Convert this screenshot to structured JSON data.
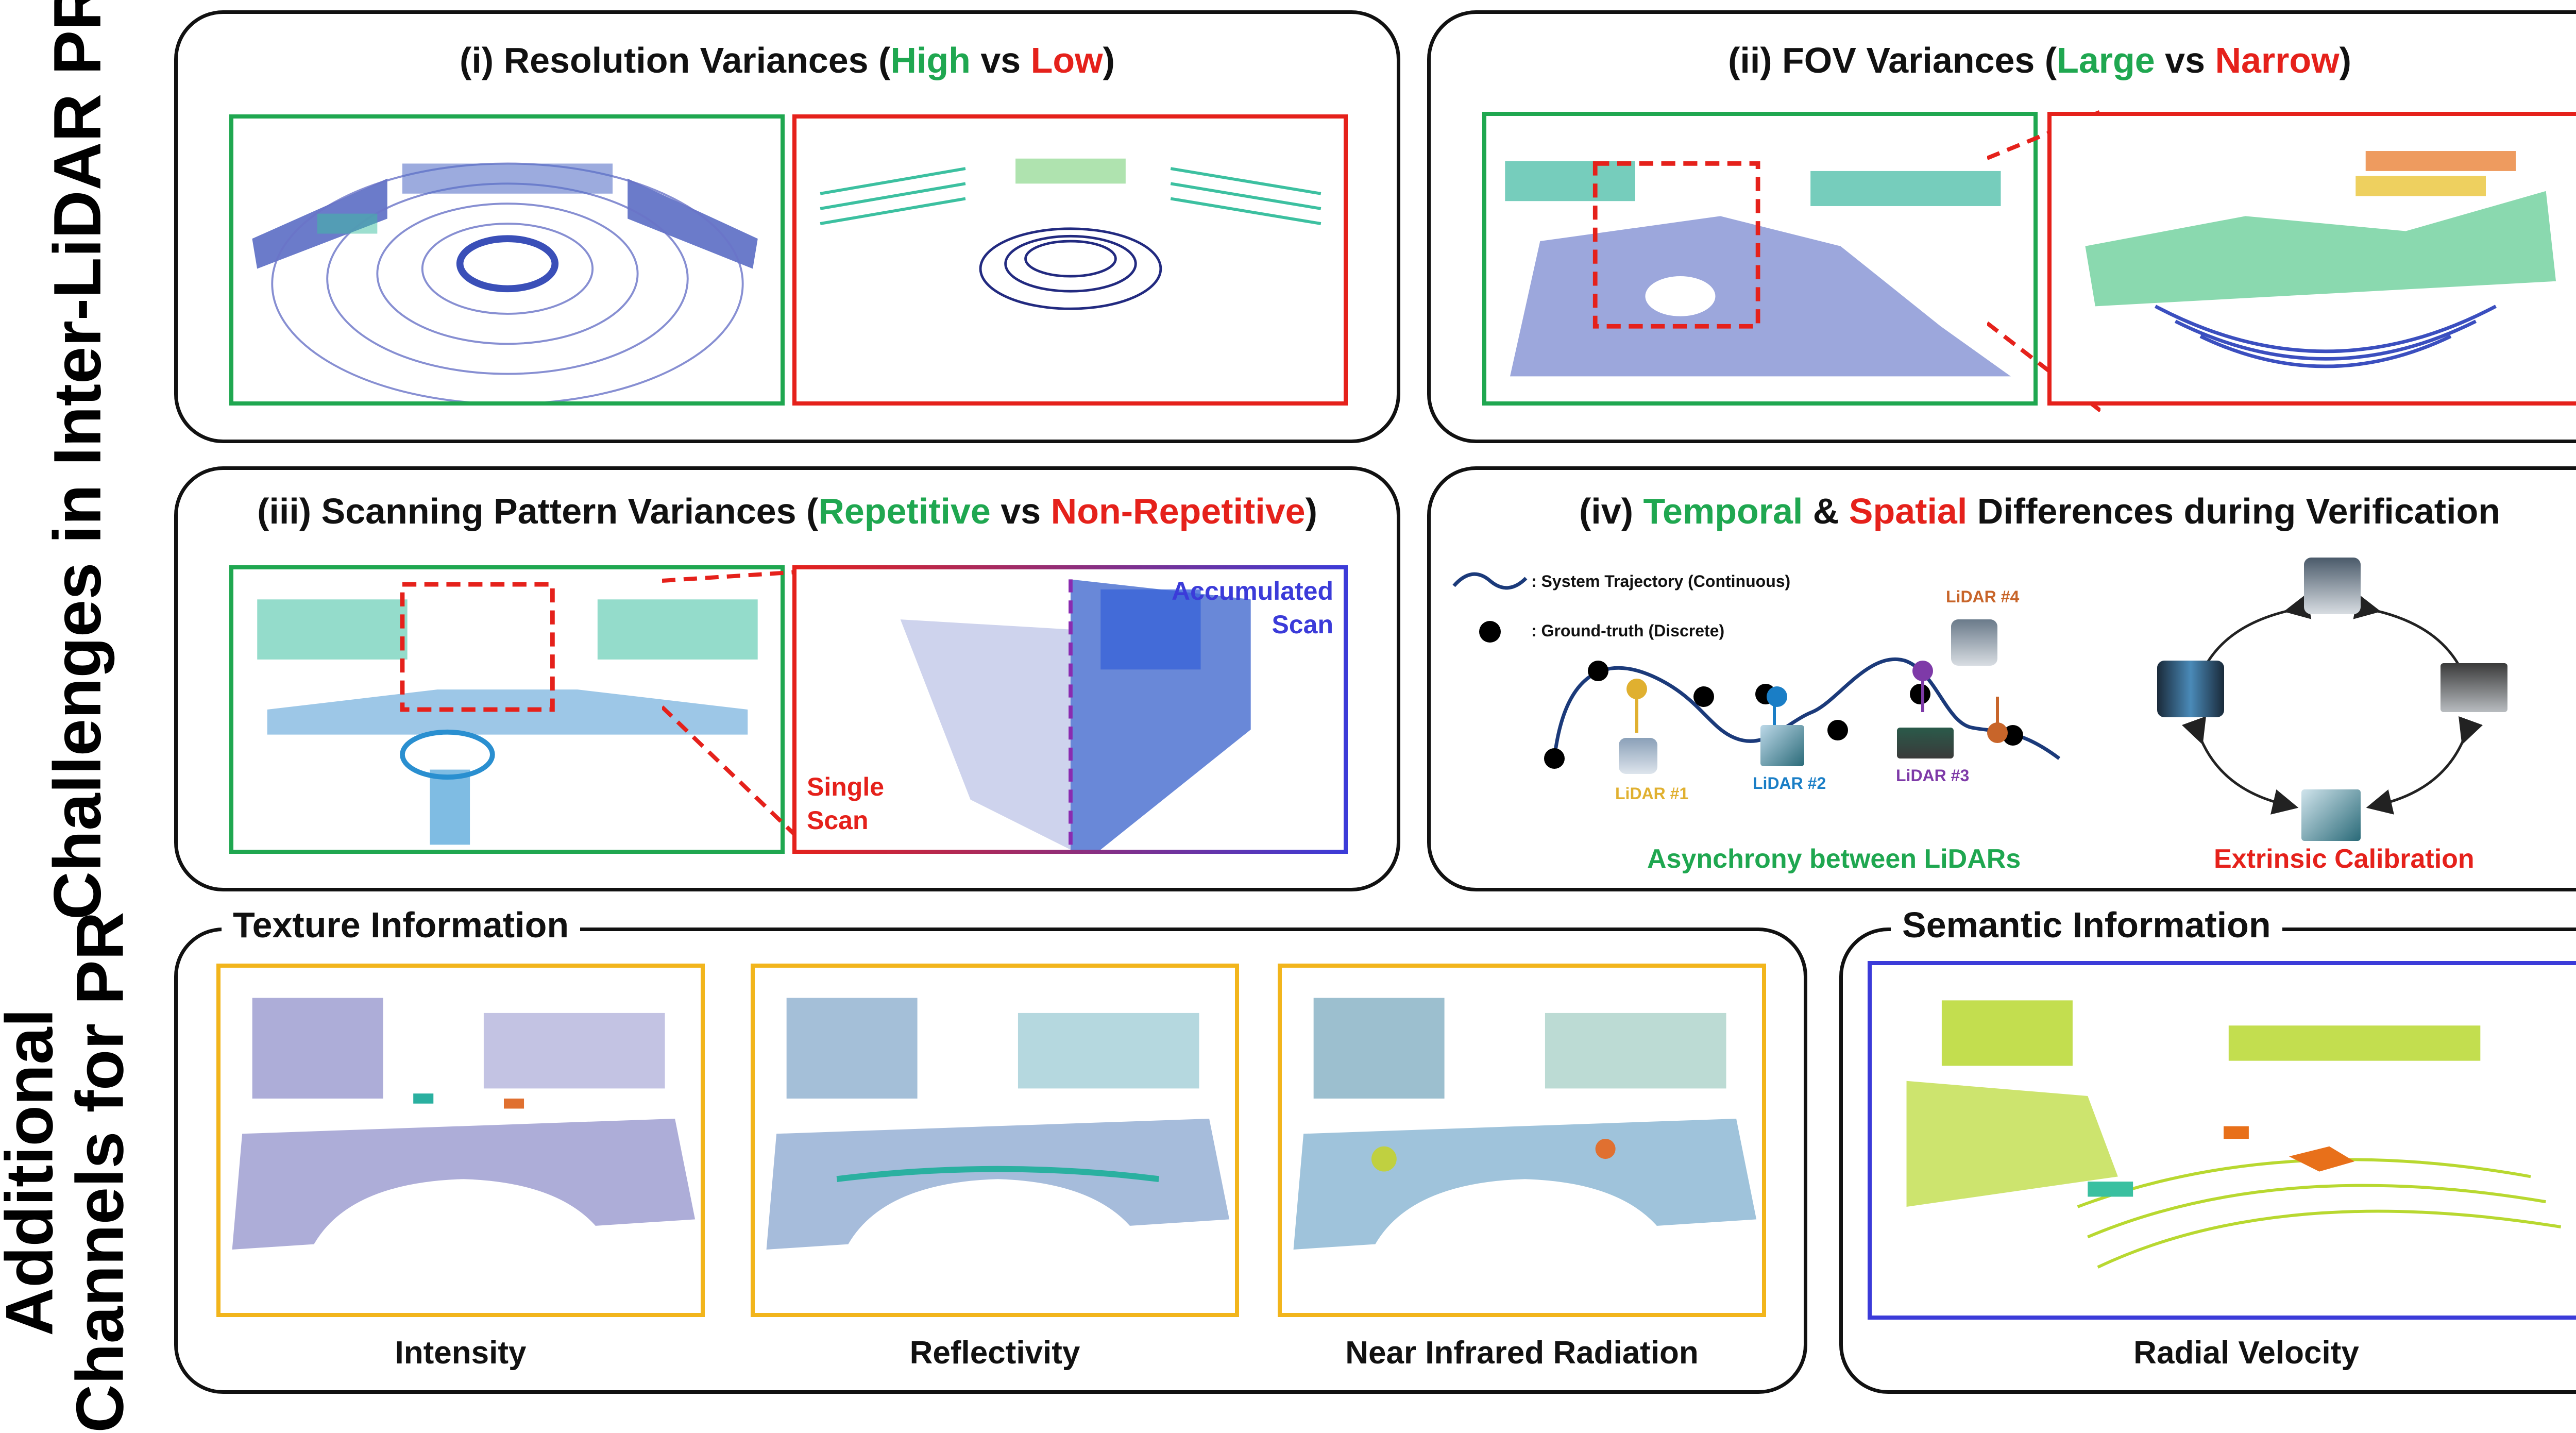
{
  "side_labels": {
    "top": "Challenges in Inter-LiDAR PR",
    "bottom_line1": "Additional",
    "bottom_line2": "Channels for PR"
  },
  "panels": {
    "resolution": {
      "prefix": "(i) Resolution Variances (",
      "high": "High",
      "mid": " vs ",
      "low": "Low",
      "suffix": ")"
    },
    "fov": {
      "prefix": "(ii) FOV Variances (",
      "large": "Large",
      "mid": " vs ",
      "narrow": "Narrow",
      "suffix": ")"
    },
    "scanning": {
      "prefix": "(iii) Scanning Pattern Variances (",
      "repetitive": "Repetitive",
      "mid": " vs ",
      "nonrep": "Non-Repetitive",
      "suffix": ")",
      "single_scan_1": "Single",
      "single_scan_2": "Scan",
      "accumulated_1": "Accumulated",
      "accumulated_2": "Scan"
    },
    "temporal": {
      "prefix": "(iv) ",
      "temporal": "Temporal",
      "amp": " & ",
      "spatial": "Spatial",
      "suffix": " Differences during Verification",
      "legend_traj": ": System Trajectory (Continuous)",
      "legend_gt": ": Ground-truth (Discrete)",
      "lidar1": "LiDAR #1",
      "lidar2": "LiDAR #2",
      "lidar3": "LiDAR #3",
      "lidar4": "LiDAR #4",
      "async": "Asynchrony between LiDARs",
      "calib": "Extrinsic Calibration"
    },
    "texture": {
      "title": "Texture Information",
      "cap1": "Intensity",
      "cap2": "Reflectivity",
      "cap3": "Near Infrared Radiation"
    },
    "semantic": {
      "title": "Semantic Information",
      "cap": "Radial Velocity"
    }
  },
  "colors": {
    "green": "#1fa750",
    "red": "#e5211b",
    "blue": "#3b3bd9",
    "orange_frame": "#f2b51c",
    "purple": "#8a2bb0",
    "lidar1": "#e0b030",
    "lidar2": "#1a7ec6",
    "lidar3": "#7e3aa8",
    "lidar4": "#c8652a"
  }
}
